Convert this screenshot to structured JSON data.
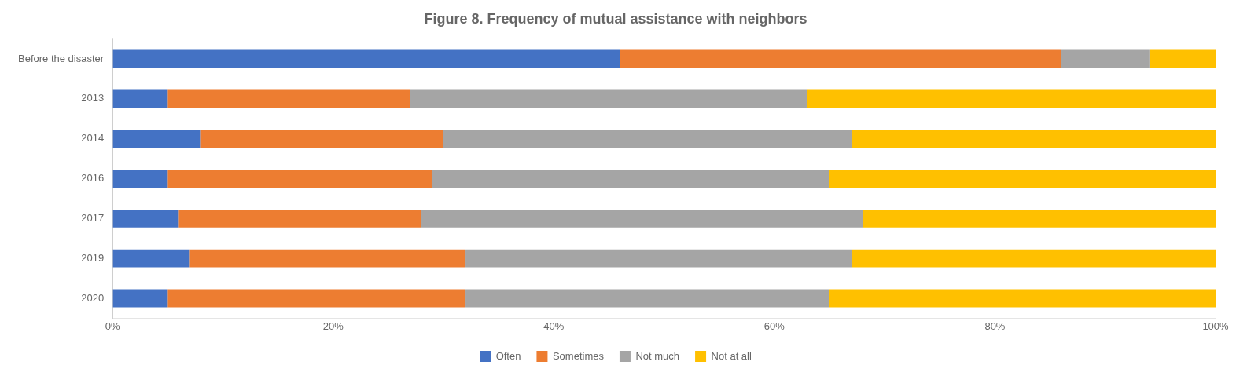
{
  "chart_data": {
    "type": "bar",
    "orientation": "horizontal",
    "stacked": true,
    "title": "Figure 8. Frequency of mutual assistance with neighbors",
    "categories": [
      "Before the disaster",
      "2013",
      "2014",
      "2016",
      "2017",
      "2019",
      "2020"
    ],
    "series": [
      {
        "name": "Often",
        "color": "#4472C4",
        "values": [
          46,
          5,
          8,
          5,
          6,
          7,
          5
        ]
      },
      {
        "name": "Sometimes",
        "color": "#ED7D31",
        "values": [
          40,
          22,
          22,
          24,
          22,
          25,
          27
        ]
      },
      {
        "name": "Not much",
        "color": "#A5A5A5",
        "values": [
          8,
          36,
          37,
          36,
          40,
          35,
          33
        ]
      },
      {
        "name": "Not at all",
        "color": "#FFC000",
        "values": [
          6,
          37,
          33,
          35,
          32,
          33,
          35
        ]
      }
    ],
    "xlim": [
      0,
      100
    ],
    "xticks": [
      {
        "value": 0,
        "label": "0%"
      },
      {
        "value": 20,
        "label": "20%"
      },
      {
        "value": 40,
        "label": "40%"
      },
      {
        "value": 60,
        "label": "60%"
      },
      {
        "value": 80,
        "label": "80%"
      },
      {
        "value": 100,
        "label": "100%"
      }
    ],
    "grid": true,
    "legend": "bottom"
  }
}
